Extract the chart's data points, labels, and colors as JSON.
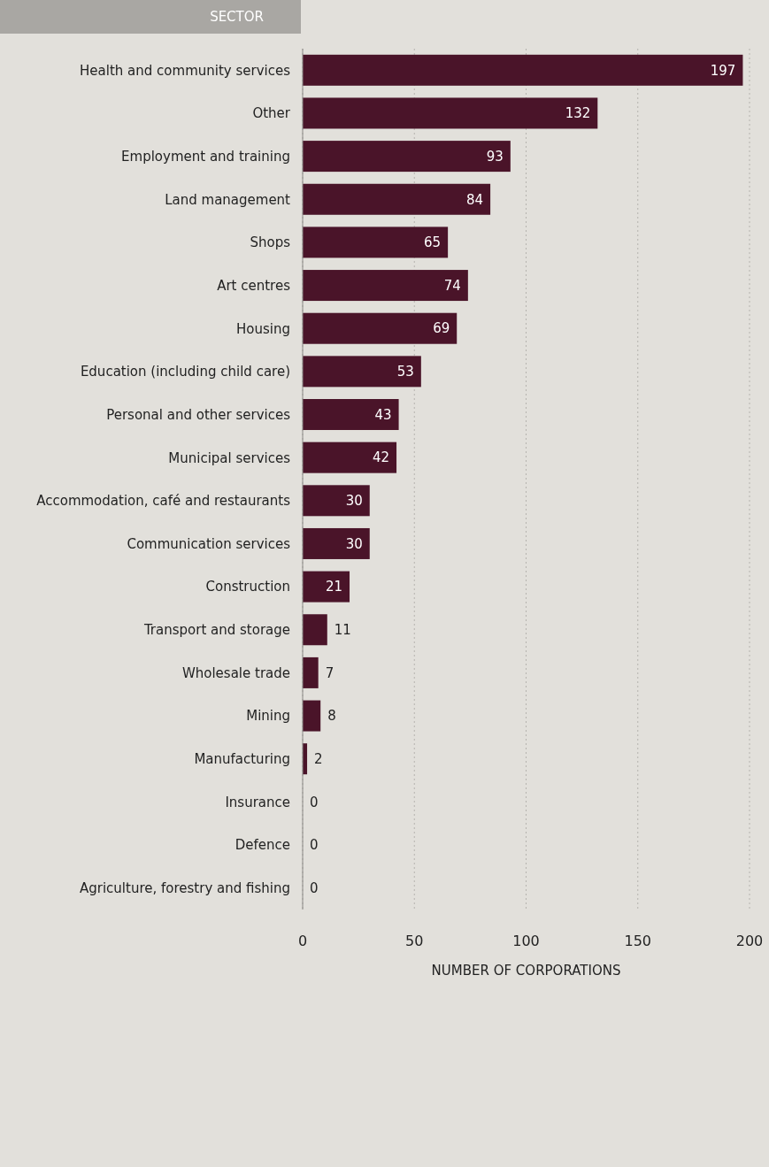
{
  "chart_data": {
    "type": "bar",
    "orientation": "horizontal",
    "ylabel": "SECTOR",
    "xlabel": "NUMBER OF CORPORATIONS",
    "categories": [
      "Health and community services",
      "Other",
      "Employment and training",
      "Land management",
      "Shops",
      "Art centres",
      "Housing",
      "Education (including child care)",
      "Personal and other services",
      "Municipal services",
      "Accommodation, café and restaurants",
      "Communication services",
      "Construction",
      "Transport and storage",
      "Wholesale trade",
      "Mining",
      "Manufacturing",
      "Insurance",
      "Defence",
      "Agriculture, forestry and fishing"
    ],
    "values": [
      197,
      132,
      93,
      84,
      65,
      74,
      69,
      53,
      43,
      42,
      30,
      30,
      21,
      11,
      7,
      8,
      2,
      0,
      0,
      0
    ],
    "color": "#4a1429",
    "xlim": [
      0,
      200
    ],
    "xticks": [
      0,
      50,
      100,
      150,
      200
    ],
    "grid": "x",
    "data_labels": true
  }
}
